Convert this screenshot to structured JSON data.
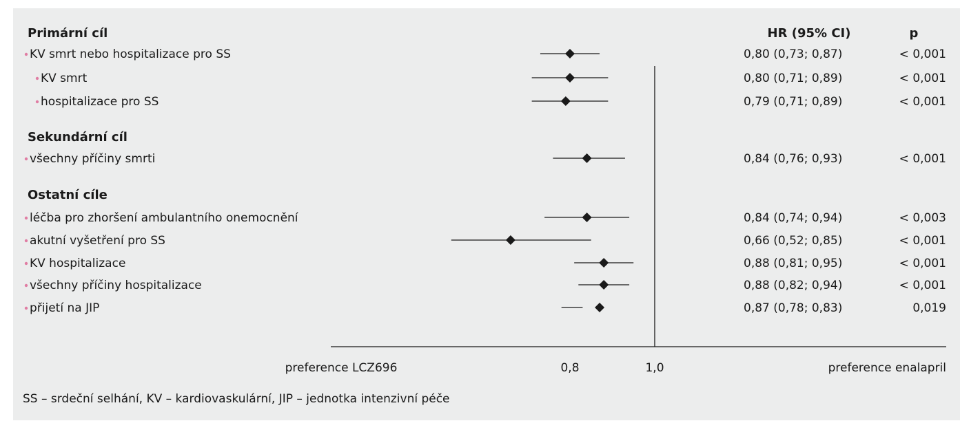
{
  "header": {
    "hr_title": "HR (95% CI)",
    "p_title": "p"
  },
  "sections": [
    {
      "title": "Primární cíl",
      "key": "primary"
    },
    {
      "title": "Sekundární cíl",
      "key": "secondary"
    },
    {
      "title": "Ostatní cíle",
      "key": "other"
    }
  ],
  "axis": {
    "left_label": "preference LCZ696",
    "right_label": "preference enalapril",
    "ticks": [
      {
        "value": 0.8,
        "label": "0,8"
      },
      {
        "value": 1.0,
        "label": "1,0"
      }
    ]
  },
  "chart_data": {
    "type": "forest",
    "reference_value": 1.0,
    "xlim": [
      0.6,
      1.22
    ],
    "rows": [
      {
        "section": "primary",
        "label": "KV smrt nebo hospitalizace pro SS",
        "indent": false,
        "hr": 0.8,
        "lo": 0.73,
        "hi": 0.87,
        "hr_text": "0,80 (0,73; 0,87)",
        "p": "< 0,001"
      },
      {
        "section": "primary",
        "label": "KV smrt",
        "indent": true,
        "hr": 0.8,
        "lo": 0.71,
        "hi": 0.89,
        "hr_text": "0,80 (0,71; 0,89)",
        "p": "< 0,001"
      },
      {
        "section": "primary",
        "label": "hospitalizace pro SS",
        "indent": true,
        "hr": 0.79,
        "lo": 0.71,
        "hi": 0.89,
        "hr_text": "0,79  (0,71; 0,89)",
        "p": "< 0,001"
      },
      {
        "section": "secondary",
        "label": "všechny příčiny smrti",
        "indent": false,
        "hr": 0.84,
        "lo": 0.76,
        "hi": 0.93,
        "hr_text": "0,84  (0,76; 0,93)",
        "p": "< 0,001"
      },
      {
        "section": "other",
        "label": "léčba pro zhoršení ambulantního onemocnění",
        "indent": false,
        "hr": 0.84,
        "lo": 0.74,
        "hi": 0.94,
        "hr_text": "0,84  (0,74; 0,94)",
        "p": "< 0,003"
      },
      {
        "section": "other",
        "label": "akutní vyšetření pro SS",
        "indent": false,
        "hr": 0.66,
        "lo": 0.52,
        "hi": 0.85,
        "hr_text": "0,66  (0,52; 0,85)",
        "p": "< 0,001"
      },
      {
        "section": "other",
        "label": "KV hospitalizace",
        "indent": false,
        "hr": 0.88,
        "lo": 0.81,
        "hi": 0.95,
        "hr_text": "0,88  (0,81; 0,95)",
        "p": "< 0,001"
      },
      {
        "section": "other",
        "label": "všechny příčiny hospitalizace",
        "indent": false,
        "hr": 0.88,
        "lo": 0.82,
        "hi": 0.94,
        "hr_text": "0,88  (0,82; 0,94)",
        "p": "< 0,001"
      },
      {
        "section": "other",
        "label": "přijetí na JIP",
        "indent": false,
        "hr": 0.87,
        "lo": 0.78,
        "hi": 0.83,
        "hr_text": "0,87  (0,78; 0,83)",
        "p": "0,019"
      }
    ]
  },
  "footnote": "SS – srdeční selhání, KV – kardiovaskulární, JIP – jednotka intenzivní péče",
  "colors": {
    "background": "#eceded",
    "bullet": "#e07da3",
    "ink": "#1a1a1a"
  }
}
